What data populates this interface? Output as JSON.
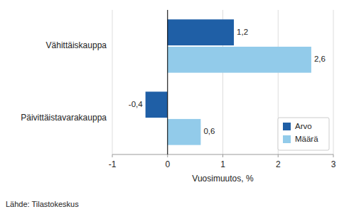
{
  "chart_data": {
    "type": "bar",
    "orientation": "horizontal",
    "categories": [
      "Päivittäistavarakauppa",
      "Vähittäiskauppa"
    ],
    "series": [
      {
        "name": "Arvo",
        "color": "#1F5FA6",
        "values": [
          -0.4,
          1.2
        ],
        "value_labels": [
          "-0,4",
          "1,2"
        ]
      },
      {
        "name": "Määrä",
        "color": "#92CBEA",
        "values": [
          0.6,
          2.6
        ],
        "value_labels": [
          "0,6",
          "2,6"
        ]
      }
    ],
    "xlabel": "Vuosimuutos, %",
    "xlim": [
      -1,
      3
    ],
    "xticks": [
      -1,
      0,
      1,
      2,
      3
    ],
    "grid": true,
    "legend": "lower right",
    "data_labels": true,
    "source": "Lähde: Tilastokeskus"
  }
}
